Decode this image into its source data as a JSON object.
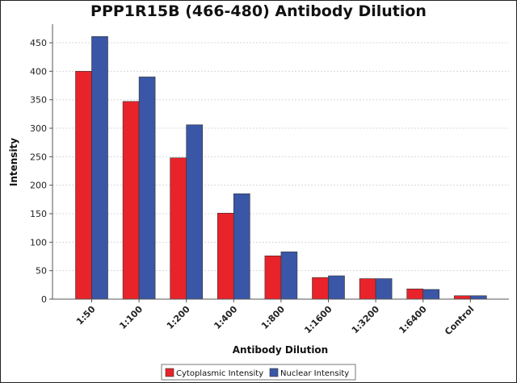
{
  "chart_data": {
    "type": "bar",
    "title": "PPP1R15B (466-480) Antibody Dilution",
    "xlabel": "Antibody Dilution",
    "ylabel": "Intensity",
    "categories": [
      "1:50",
      "1:100",
      "1:200",
      "1:400",
      "1:800",
      "1:1600",
      "1:3200",
      "1:6400",
      "Control"
    ],
    "series": [
      {
        "name": "Cytoplasmic Intensity",
        "color": "#e8232a",
        "values": [
          400,
          347,
          248,
          151,
          76,
          38,
          36,
          18,
          6
        ]
      },
      {
        "name": "Nuclear Intensity",
        "color": "#3a56a6",
        "values": [
          461,
          390,
          306,
          185,
          83,
          41,
          36,
          17,
          6
        ]
      }
    ],
    "ylim": [
      0,
      475
    ],
    "yticks": [
      "0",
      "50",
      "100",
      "150",
      "200",
      "250",
      "300",
      "350",
      "400",
      "450"
    ],
    "grid": true,
    "legend_position": "bottom-center"
  }
}
